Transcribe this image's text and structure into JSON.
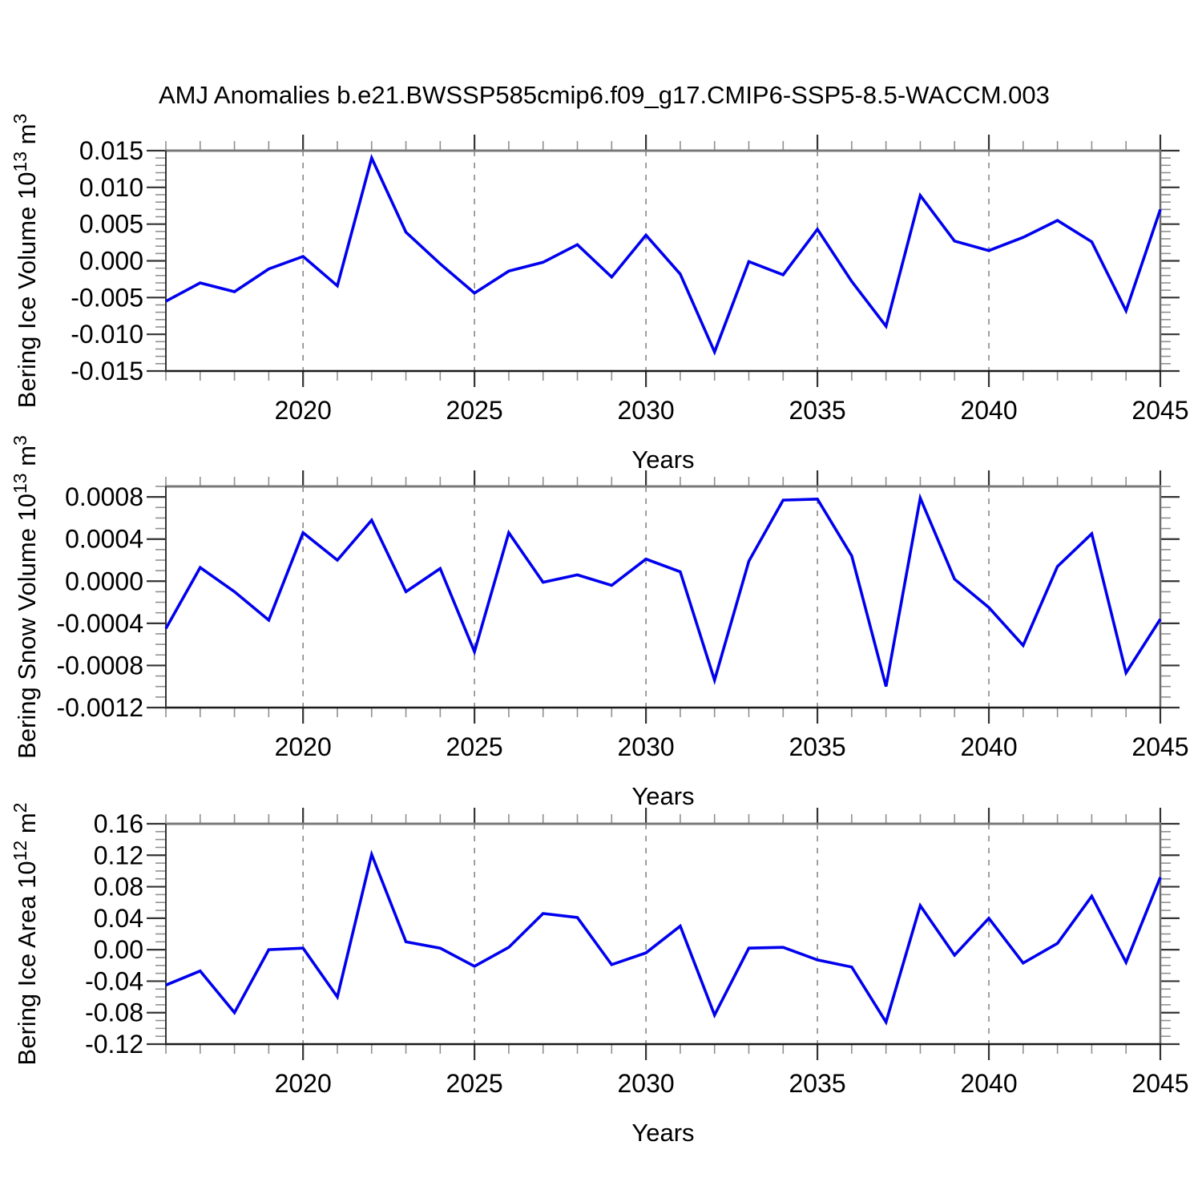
{
  "title": "AMJ Anomalies b.e21.BWSSP585cmip6.f09_g17.CMIP6-SSP5-8.5-WACCM.003",
  "style": {
    "line_color": "#0000ee",
    "frame_top_color": "#787878",
    "frame_right_color": "#6e6e6e",
    "frame_bottom_color": "#1a1a1a",
    "frame_left_color": "#333333",
    "major_tick_color": "#333333",
    "minor_tick_color": "#909090",
    "grid_color": "#808080",
    "text_color": "#000000",
    "background": "#ffffff"
  },
  "x_axis": {
    "label": "Years",
    "major_tick_years": [
      2020,
      2025,
      2030,
      2035,
      2040,
      2045
    ],
    "tick_labels": [
      "2020",
      "2025",
      "2030",
      "2035",
      "2040",
      "2045"
    ],
    "grid_years": [
      2020,
      2025,
      2030,
      2035,
      2040
    ]
  },
  "chart_data": [
    {
      "type": "line",
      "series_name": "Bering Ice Volume AMJ anomaly",
      "ylabel": "Bering Ice Volume 10^13 m^3",
      "ylabel_parts": [
        {
          "text": "Bering Ice Volume 10",
          "sup": false
        },
        {
          "text": "13",
          "sup": true
        },
        {
          "text": " m",
          "sup": false
        },
        {
          "text": "3",
          "sup": true
        }
      ],
      "xlabel": "Years",
      "x": [
        2016,
        2017,
        2018,
        2019,
        2020,
        2021,
        2022,
        2023,
        2024,
        2025,
        2026,
        2027,
        2028,
        2029,
        2030,
        2031,
        2032,
        2033,
        2034,
        2035,
        2036,
        2037,
        2038,
        2039,
        2040,
        2041,
        2042,
        2043,
        2044,
        2045
      ],
      "values": [
        -0.0055,
        -0.003,
        -0.0042,
        -0.0011,
        0.0006,
        -0.0034,
        0.014,
        0.0039,
        -0.0004,
        -0.0044,
        -0.0014,
        -0.0002,
        0.0022,
        -0.0022,
        0.0035,
        -0.0018,
        -0.0124,
        -0.0001,
        -0.0019,
        0.0043,
        -0.0028,
        -0.0089,
        0.0089,
        0.0027,
        0.0014,
        0.0032,
        0.0055,
        0.0026,
        -0.0068,
        0.007
      ],
      "ylim": [
        -0.015,
        0.015
      ],
      "xlim": [
        2016,
        2045
      ],
      "ytick_values": [
        0.015,
        0.01,
        0.005,
        0.0,
        -0.005,
        -0.01,
        -0.015
      ],
      "ytick_labels": [
        "0.015",
        "0.010",
        "0.005",
        "0.000",
        "-0.005",
        "-0.010",
        "-0.015"
      ],
      "y_minor_step": 0.001,
      "grid": "vertical-dashed",
      "legend": "none"
    },
    {
      "type": "line",
      "series_name": "Bering Snow Volume AMJ anomaly",
      "ylabel": "Bering Snow Volume 10^13 m^3",
      "ylabel_parts": [
        {
          "text": "Bering Snow Volume 10",
          "sup": false
        },
        {
          "text": "13",
          "sup": true
        },
        {
          "text": " m",
          "sup": false
        },
        {
          "text": "3",
          "sup": true
        }
      ],
      "xlabel": "Years",
      "x": [
        2016,
        2017,
        2018,
        2019,
        2020,
        2021,
        2022,
        2023,
        2024,
        2025,
        2026,
        2027,
        2028,
        2029,
        2030,
        2031,
        2032,
        2033,
        2034,
        2035,
        2036,
        2037,
        2038,
        2039,
        2040,
        2041,
        2042,
        2043,
        2044,
        2045
      ],
      "values": [
        -0.00045,
        0.00013,
        -0.0001,
        -0.00037,
        0.00046,
        0.0002,
        0.00058,
        -0.0001,
        0.00012,
        -0.00067,
        0.00046,
        -1e-05,
        6e-05,
        -4e-05,
        0.00021,
        9e-05,
        -0.00094,
        0.00019,
        0.00077,
        0.00078,
        0.00024,
        -0.001,
        0.00079,
        2e-05,
        -0.00025,
        -0.00061,
        0.00014,
        0.00045,
        -0.00087,
        -0.00036
      ],
      "ylim": [
        -0.0012,
        0.0009
      ],
      "xlim": [
        2016,
        2045
      ],
      "ytick_values": [
        0.0008,
        0.0004,
        0.0,
        -0.0004,
        -0.0008,
        -0.0012
      ],
      "ytick_labels": [
        "0.0008",
        "0.0004",
        "0.0000",
        "-0.0004",
        "-0.0008",
        "-0.0012"
      ],
      "y_minor_step": 0.0001,
      "grid": "vertical-dashed",
      "legend": "none"
    },
    {
      "type": "line",
      "series_name": "Bering Ice Area AMJ anomaly",
      "ylabel": "Bering Ice Area 10^12 m^2",
      "ylabel_parts": [
        {
          "text": "Bering Ice Area 10",
          "sup": false
        },
        {
          "text": "12",
          "sup": true
        },
        {
          "text": " m",
          "sup": false
        },
        {
          "text": "2",
          "sup": true
        }
      ],
      "xlabel": "Years",
      "x": [
        2016,
        2017,
        2018,
        2019,
        2020,
        2021,
        2022,
        2023,
        2024,
        2025,
        2026,
        2027,
        2028,
        2029,
        2030,
        2031,
        2032,
        2033,
        2034,
        2035,
        2036,
        2037,
        2038,
        2039,
        2040,
        2041,
        2042,
        2043,
        2044,
        2045
      ],
      "values": [
        -0.045,
        -0.027,
        -0.08,
        0.0,
        0.002,
        -0.06,
        0.121,
        0.01,
        0.002,
        -0.021,
        0.003,
        0.046,
        0.041,
        -0.019,
        -0.004,
        0.03,
        -0.083,
        0.002,
        0.003,
        -0.013,
        -0.022,
        -0.092,
        0.056,
        -0.007,
        0.04,
        -0.017,
        0.008,
        0.068,
        -0.016,
        0.092
      ],
      "ylim": [
        -0.12,
        0.16
      ],
      "xlim": [
        2016,
        2045
      ],
      "ytick_values": [
        0.16,
        0.12,
        0.08,
        0.04,
        0.0,
        -0.04,
        -0.08,
        -0.12
      ],
      "ytick_labels": [
        "0.16",
        "0.12",
        "0.08",
        "0.04",
        "0.00",
        "-0.04",
        "-0.08",
        "-0.12"
      ],
      "y_minor_step": 0.01,
      "grid": "vertical-dashed",
      "legend": "none"
    }
  ]
}
